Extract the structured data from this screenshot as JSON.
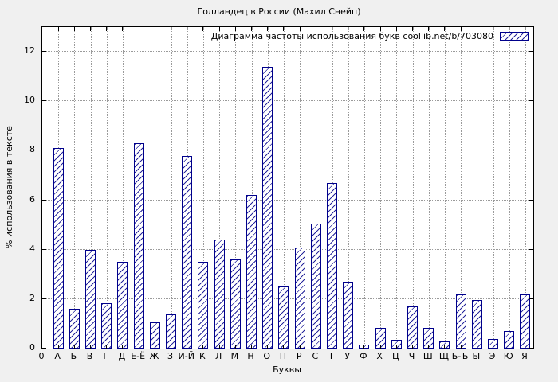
{
  "chart_data": {
    "type": "bar",
    "title": "Голландец в России (Махил Снейп)",
    "legend": "Диаграмма частоты использования букв coollib.net/b/703080",
    "xlabel": "Буквы",
    "ylabel": "% использования в тексте",
    "origin_label": "0",
    "categories": [
      "А",
      "Б",
      "В",
      "Г",
      "Д",
      "Е-Ё",
      "Ж",
      "З",
      "И-Й",
      "К",
      "Л",
      "М",
      "Н",
      "О",
      "П",
      "Р",
      "С",
      "Т",
      "У",
      "Ф",
      "Х",
      "Ц",
      "Ч",
      "Ш",
      "Щ",
      "Ь-Ъ",
      "Ы",
      "Э",
      "Ю",
      "Я"
    ],
    "values": [
      8.1,
      1.6,
      4.0,
      1.85,
      3.5,
      8.3,
      1.05,
      1.4,
      7.8,
      3.5,
      4.4,
      3.6,
      6.2,
      11.4,
      2.5,
      4.1,
      5.05,
      6.7,
      2.7,
      0.15,
      0.85,
      0.35,
      1.7,
      0.85,
      0.3,
      2.2,
      1.95,
      0.4,
      0.7,
      2.2
    ],
    "ylim": [
      0,
      13
    ],
    "yticks": [
      0,
      2,
      4,
      6,
      8,
      10,
      12
    ],
    "grid": true,
    "legend_position": "top-right-inside",
    "bar_fill": "#ffffff",
    "hatch_color": "#00008b",
    "grid_color": "#9a9a9a",
    "background": "#f0f0f0",
    "plot_background": "#ffffff"
  }
}
